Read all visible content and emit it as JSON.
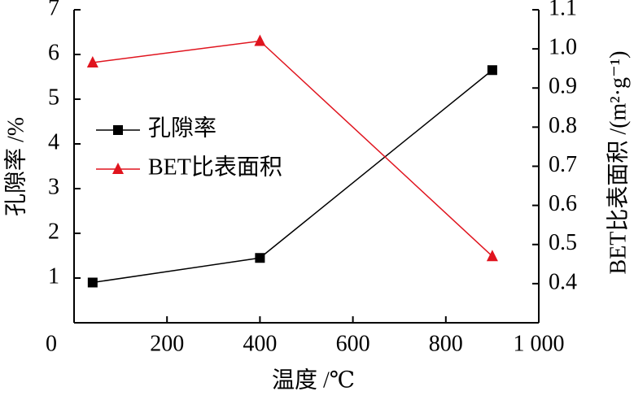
{
  "chart_data": {
    "type": "line",
    "x_label": "温度 /℃",
    "y_label": "孔隙率 /%",
    "y2_label": "BET比表面积 /(m²·g⁻¹)",
    "x": [
      40,
      400,
      900
    ],
    "xlim": [
      0,
      1000
    ],
    "xticks": [
      0,
      200,
      400,
      600,
      800,
      {
        "value": 1000,
        "label": "1 000"
      }
    ],
    "ylim": [
      0,
      7
    ],
    "yticks": [
      1,
      2,
      3,
      4,
      5,
      6,
      7
    ],
    "y2lim": [
      0.3,
      1.1
    ],
    "y2ticks": [
      0.4,
      0.5,
      0.6,
      0.7,
      0.8,
      0.9,
      1.0,
      1.1
    ],
    "series": [
      {
        "name": "孔隙率",
        "color": "#000000",
        "marker": "square",
        "values": [
          0.9,
          1.45,
          5.65
        ]
      },
      {
        "name": "BET比表面积",
        "color": "#e0141e",
        "marker": "triangle",
        "axis": "y2",
        "values": [
          0.965,
          1.02,
          0.47
        ]
      }
    ]
  }
}
